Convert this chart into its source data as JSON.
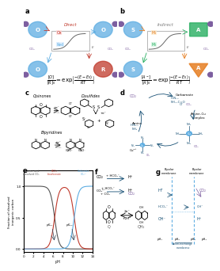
{
  "background": "#ffffff",
  "panel_label_fontsize": 6,
  "carbonic_acid_color": "#555555",
  "bicarbonate_color": "#c0392b",
  "carbonate_color": "#5dade2",
  "pka1": 6.3,
  "pka2": 10.3,
  "direct_color": "#c0392b",
  "blue_color": "#5dade2",
  "purple_color": "#7d5fa0",
  "green_color": "#27ae60",
  "orange_color": "#e67e22",
  "dark_blue": "#1a5276",
  "arrow_color": "#2c3e50"
}
